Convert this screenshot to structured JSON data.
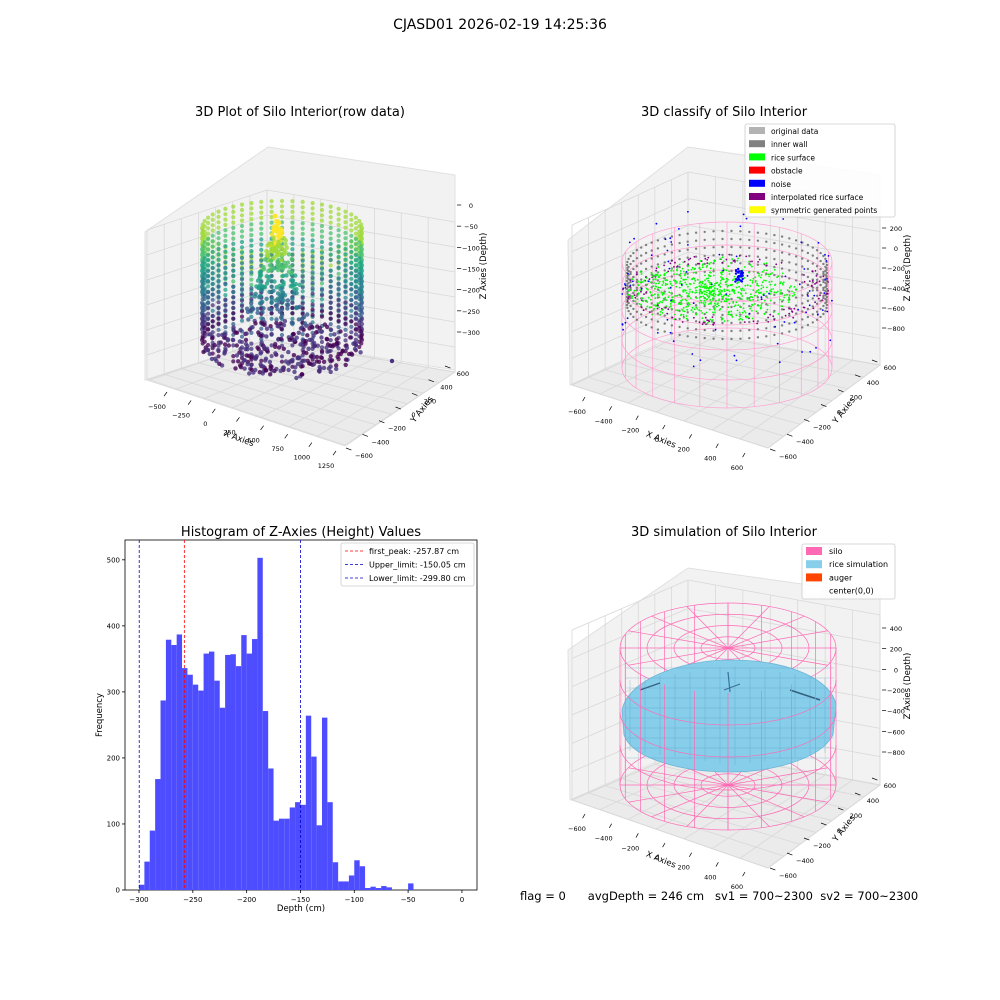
{
  "figure": {
    "suptitle": "CJASD01 2026-02-19 14:25:36"
  },
  "footer": {
    "flag": "flag = 0",
    "avg_depth": "avgDepth = 246 cm",
    "sv1": "sv1 = 700~2300",
    "sv2": "sv2 = 700~2300"
  },
  "colors": {
    "histogram_bar": "#4d4dff",
    "first_peak_line": "#ff0000",
    "limit_lines": "#0000cc",
    "silo_wire": "#ff7fbf",
    "rice_simulation": "#87ceeb",
    "auger": "#ff4500",
    "original_data": "#b3b3b3",
    "inner_wall": "#808080",
    "rice_surface": "#00ff00",
    "obstacle": "#ff0000",
    "noise": "#0000ff",
    "interpolated_rice_surface": "#800080",
    "symmetric_generated_points": "#ffff00"
  },
  "chart_data": [
    {
      "type": "scatter",
      "projection": "3d",
      "title": "3D Plot of Silo Interior(row data)",
      "xlabel": "X Axies",
      "ylabel": "Y Axies",
      "zlabel": "Z Axies (Depth)",
      "x_ticks": [
        "−500",
        "−250",
        "0",
        "250",
        "500",
        "750",
        "1000",
        "1250"
      ],
      "y_ticks": [
        "−600",
        "−400",
        "−200",
        "0",
        "200",
        "400",
        "600"
      ],
      "z_ticks": [
        "0",
        "−50",
        "−100",
        "−150",
        "−200",
        "−250",
        "−300"
      ],
      "colormap": "viridis",
      "grid": true
    },
    {
      "type": "scatter",
      "projection": "3d",
      "title": "3D classify of Silo Interior",
      "xlabel": "X Axies",
      "ylabel": "Y Axies",
      "zlabel": "Z Axies (Depth)",
      "x_ticks": [
        "−600",
        "−400",
        "−200",
        "0",
        "200",
        "400",
        "600"
      ],
      "y_ticks": [
        "−600",
        "−400",
        "−200",
        "0",
        "200",
        "400",
        "600"
      ],
      "z_ticks": [
        "200",
        "0",
        "−200",
        "−400",
        "−600",
        "−800"
      ],
      "legend_position": "top-right",
      "legend": [
        {
          "label": "original data",
          "color": "#b3b3b3"
        },
        {
          "label": "inner wall",
          "color": "#808080"
        },
        {
          "label": "rice surface",
          "color": "#00ff00"
        },
        {
          "label": "obstacle",
          "color": "#ff0000"
        },
        {
          "label": "noise",
          "color": "#0000ff"
        },
        {
          "label": "interpolated rice surface",
          "color": "#800080"
        },
        {
          "label": "symmetric generated points",
          "color": "#ffff00"
        }
      ],
      "grid": true
    },
    {
      "type": "bar",
      "title": "Histogram of Z-Axies (Height) Values",
      "xlabel": "Depth (cm)",
      "ylabel": "Frequency",
      "xlim": [
        -313,
        14
      ],
      "ylim": [
        0,
        530
      ],
      "x_ticks": [
        -300,
        -250,
        -200,
        -150,
        -100,
        -50,
        0
      ],
      "x_tick_labels": [
        "−300",
        "−250",
        "−200",
        "−150",
        "−100",
        "−50",
        "0"
      ],
      "y_ticks": [
        0,
        100,
        200,
        300,
        400,
        500
      ],
      "y_tick_labels": [
        "0",
        "100",
        "200",
        "300",
        "400",
        "500"
      ],
      "bin_start": -300,
      "bin_width": 5.0,
      "values": [
        8,
        43,
        90,
        168,
        287,
        379,
        371,
        387,
        336,
        326,
        311,
        302,
        358,
        361,
        317,
        276,
        356,
        357,
        339,
        386,
        358,
        380,
        503,
        271,
        184,
        105,
        108,
        108,
        125,
        133,
        129,
        264,
        202,
        98,
        261,
        133,
        42,
        13,
        13,
        22,
        45,
        36,
        3,
        5,
        3,
        6,
        4,
        0,
        0,
        0,
        10
      ],
      "vlines": [
        {
          "x": -257.87,
          "label": "first_peak: -257.87 cm",
          "color": "#ff0000"
        },
        {
          "x": -150.05,
          "label": "Upper_limit: -150.05 cm",
          "color": "#0000cc"
        },
        {
          "x": -299.8,
          "label": "Lower_limit: -299.80 cm",
          "color": "#0000cc"
        }
      ],
      "legend_position": "top-right",
      "grid": false
    },
    {
      "type": "surface",
      "projection": "3d",
      "title": "3D simulation of Silo Interior",
      "xlabel": "X Axies",
      "ylabel": "Y Axies",
      "zlabel": "Z Axies (Depth)",
      "x_ticks": [
        "−600",
        "−400",
        "−200",
        "0",
        "200",
        "400",
        "600"
      ],
      "y_ticks": [
        "−600",
        "−400",
        "−200",
        "0",
        "200",
        "400",
        "600"
      ],
      "z_ticks": [
        "400",
        "200",
        "0",
        "−200",
        "−400",
        "−600",
        "−800"
      ],
      "legend_position": "top-right",
      "legend": [
        {
          "label": "silo",
          "color": "#ff69b4"
        },
        {
          "label": "rice simulation",
          "color": "#87ceeb"
        },
        {
          "label": "auger",
          "color": "#ff4500"
        },
        {
          "label": "center(0,0)",
          "color": "#ffffff"
        }
      ],
      "grid": true
    }
  ]
}
